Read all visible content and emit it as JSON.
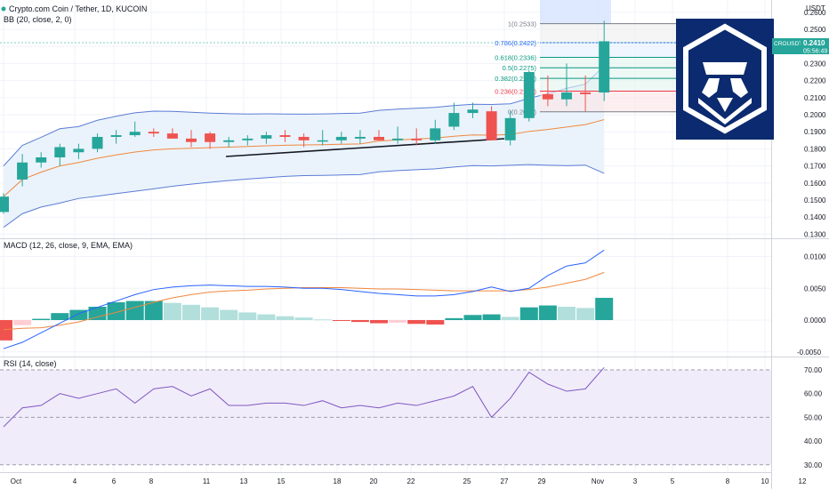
{
  "header": {
    "title": "Crypto.com Coin / Tether, 1D, KUCOIN",
    "bb_label": "BB (20, close, 2, 0)",
    "macd_label": "MACD (12, 26, close, 9, EMA, EMA)",
    "rsi_label": "RSI (14, close)"
  },
  "price_axis": {
    "currency": "USDT",
    "ticks": [
      "0.2600",
      "0.2500",
      "0.2400",
      "0.2300",
      "0.2200",
      "0.2100",
      "0.2000",
      "0.1900",
      "0.1800",
      "0.1700",
      "0.1600",
      "0.1500",
      "0.1400",
      "0.1300"
    ],
    "tick_values": [
      0.26,
      0.25,
      0.24,
      0.23,
      0.22,
      0.21,
      0.2,
      0.19,
      0.18,
      0.17,
      0.16,
      0.15,
      0.14,
      0.13
    ],
    "current_symbol": "CROUSDT",
    "current_price": "0.2410",
    "current_value": 0.241,
    "countdown": "05:56:49"
  },
  "macd_axis": {
    "ticks": [
      "0.0100",
      "0.0050",
      "0.0000",
      "-0.0050"
    ],
    "tick_values": [
      0.01,
      0.005,
      0.0,
      -0.005
    ]
  },
  "rsi_axis": {
    "ticks": [
      "70.00",
      "60.00",
      "50.00",
      "40.00",
      "30.00"
    ],
    "tick_values": [
      70,
      60,
      50,
      40,
      30
    ]
  },
  "time_axis": [
    "Oct",
    "4",
    "6",
    "8",
    "11",
    "13",
    "15",
    "18",
    "20",
    "22",
    "25",
    "27",
    "29",
    "Nov",
    "3",
    "5",
    "8",
    "10",
    "12"
  ],
  "fib_levels": [
    {
      "label": "1(0.2533)",
      "value": 0.2533,
      "color": "#787b86"
    },
    {
      "label": "0.786(0.2422)",
      "value": 0.2422,
      "color": "#2962ff"
    },
    {
      "label": "0.618(0.2336)",
      "value": 0.2336,
      "color": "#089981"
    },
    {
      "label": "0.5(0.2275)",
      "value": 0.2275,
      "color": "#089981"
    },
    {
      "label": "0.382(0.2213)",
      "value": 0.2213,
      "color": "#089981"
    },
    {
      "label": "0.236(0.2138)",
      "value": 0.2138,
      "color": "#f23645"
    },
    {
      "label": "0(0.2017)",
      "value": 0.2017,
      "color": "#787b86"
    }
  ],
  "colors": {
    "up": "#26a69a",
    "down": "#ef5350",
    "bb_band": "#5b7cd6",
    "bb_basis": "#f0883e",
    "bb_fill": "#eaf3fb",
    "rsi_line": "#7e57c2",
    "rsi_fill": "#f1ecfa",
    "logo_bg": "#0b2a6f"
  },
  "logo": {
    "name": "crypto-com-logo-icon"
  },
  "chart_data": [
    {
      "type": "candlestick",
      "title": "Crypto.com Coin / Tether, 1D, KUCOIN",
      "x": [
        "Oct 1",
        "Oct 2",
        "Oct 3",
        "Oct 4",
        "Oct 5",
        "Oct 6",
        "Oct 7",
        "Oct 8",
        "Oct 9",
        "Oct 10",
        "Oct 11",
        "Oct 12",
        "Oct 13",
        "Oct 14",
        "Oct 15",
        "Oct 16",
        "Oct 17",
        "Oct 18",
        "Oct 19",
        "Oct 20",
        "Oct 21",
        "Oct 22",
        "Oct 23",
        "Oct 24",
        "Oct 25",
        "Oct 26",
        "Oct 27",
        "Oct 28",
        "Oct 29",
        "Oct 30",
        "Oct 31",
        "Nov 1",
        "Nov 2"
      ],
      "open": [
        0.143,
        0.162,
        0.172,
        0.175,
        0.178,
        0.18,
        0.187,
        0.188,
        0.19,
        0.189,
        0.186,
        0.189,
        0.184,
        0.185,
        0.186,
        0.188,
        0.187,
        0.185,
        0.185,
        0.186,
        0.187,
        0.185,
        0.186,
        0.185,
        0.193,
        0.201,
        0.202,
        0.185,
        0.198,
        0.212,
        0.209,
        0.213,
        0.213
      ],
      "high": [
        0.154,
        0.177,
        0.178,
        0.183,
        0.183,
        0.189,
        0.191,
        0.196,
        0.192,
        0.192,
        0.191,
        0.19,
        0.187,
        0.188,
        0.19,
        0.191,
        0.189,
        0.191,
        0.19,
        0.191,
        0.191,
        0.193,
        0.192,
        0.197,
        0.207,
        0.207,
        0.205,
        0.202,
        0.226,
        0.223,
        0.23,
        0.223,
        0.255
      ],
      "low": [
        0.142,
        0.158,
        0.169,
        0.17,
        0.174,
        0.178,
        0.183,
        0.187,
        0.187,
        0.186,
        0.181,
        0.18,
        0.181,
        0.182,
        0.183,
        0.184,
        0.181,
        0.182,
        0.183,
        0.183,
        0.185,
        0.183,
        0.182,
        0.183,
        0.191,
        0.198,
        0.185,
        0.182,
        0.196,
        0.205,
        0.205,
        0.202,
        0.208
      ],
      "close": [
        0.152,
        0.172,
        0.175,
        0.181,
        0.18,
        0.187,
        0.188,
        0.19,
        0.189,
        0.186,
        0.184,
        0.184,
        0.185,
        0.186,
        0.188,
        0.187,
        0.185,
        0.185,
        0.187,
        0.187,
        0.185,
        0.186,
        0.185,
        0.192,
        0.201,
        0.203,
        0.185,
        0.198,
        0.225,
        0.209,
        0.213,
        0.212,
        0.243
      ],
      "annotations": [
        "Fibonacci retracement 1(0.2533) to 0(0.2017)",
        "trendline"
      ]
    },
    {
      "type": "bar",
      "title": "MACD (12, 26, close, 9, EMA, EMA)",
      "histogram": [
        -0.0032,
        -0.0008,
        0.0002,
        0.0011,
        0.0016,
        0.0021,
        0.0028,
        0.003,
        0.003,
        0.0027,
        0.0024,
        0.002,
        0.0016,
        0.0012,
        0.0009,
        0.0006,
        0.0004,
        0.0001,
        -0.0001,
        -0.0003,
        -0.0005,
        -0.0004,
        -0.0006,
        -0.0007,
        0.0003,
        0.0008,
        0.0009,
        0.0005,
        0.002,
        0.0023,
        0.0021,
        0.0019,
        0.0035
      ],
      "macd": [
        -0.0045,
        -0.0035,
        -0.002,
        -0.0005,
        0.001,
        0.002,
        0.003,
        0.004,
        0.0048,
        0.0052,
        0.0054,
        0.0055,
        0.0054,
        0.0053,
        0.0053,
        0.0052,
        0.005,
        0.005,
        0.0048,
        0.0045,
        0.0042,
        0.004,
        0.0038,
        0.0038,
        0.004,
        0.0045,
        0.0052,
        0.0045,
        0.005,
        0.007,
        0.0085,
        0.009,
        0.011
      ],
      "signal": [
        -0.0015,
        -0.0013,
        -0.0012,
        -0.0008,
        -0.0003,
        0.0005,
        0.0012,
        0.002,
        0.0028,
        0.0035,
        0.004,
        0.0044,
        0.0046,
        0.0047,
        0.0049,
        0.005,
        0.0051,
        0.0051,
        0.0051,
        0.005,
        0.0049,
        0.0049,
        0.0048,
        0.0047,
        0.0046,
        0.0046,
        0.0046,
        0.0046,
        0.0048,
        0.0052,
        0.0058,
        0.0064,
        0.0075
      ]
    },
    {
      "type": "line",
      "title": "RSI (14, close)",
      "values": [
        46,
        54,
        55,
        60,
        58,
        60,
        62,
        56,
        62,
        63,
        59,
        62,
        55,
        55,
        56,
        56,
        55,
        57,
        54,
        55,
        54,
        56,
        55,
        57,
        59,
        63,
        50,
        58,
        69,
        64,
        61,
        62,
        71
      ],
      "ylim": [
        30,
        70
      ]
    }
  ]
}
